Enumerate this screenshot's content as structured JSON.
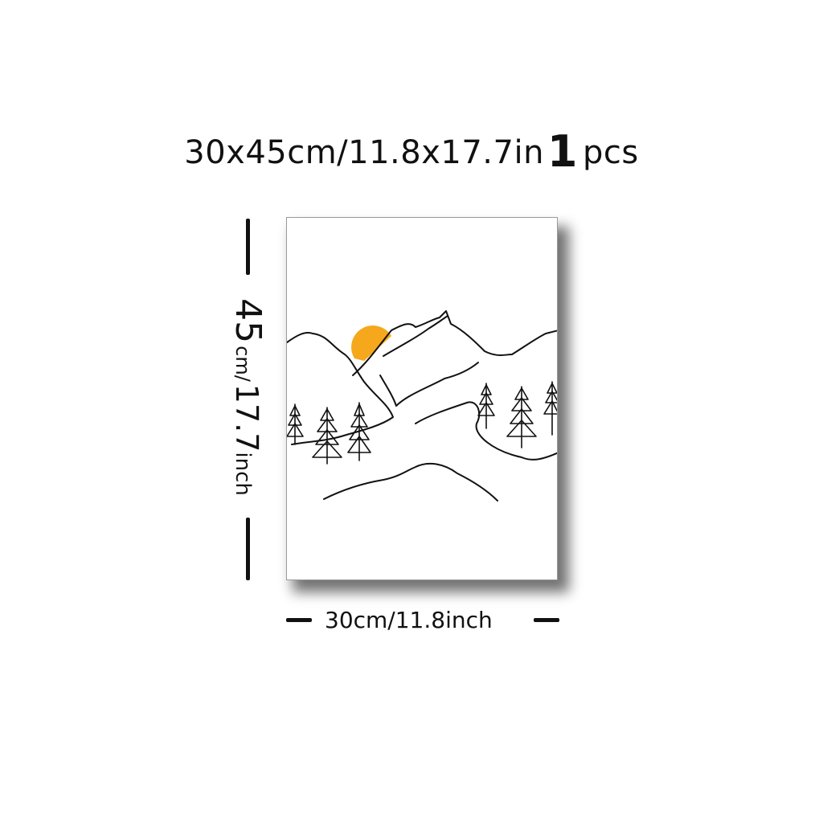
{
  "title": {
    "main": "30x45cm/11.8x17.7in",
    "qty": "1",
    "unit": "pcs"
  },
  "height_label": {
    "number": "45",
    "unit_small": "cm/",
    "value": "17.7",
    "unit_tail": "inch"
  },
  "width_label": "30cm/11.8inch",
  "artwork": {
    "line_color": "#111111",
    "sun_color": "#f5a81c",
    "icons": [
      "sun-icon",
      "mountain-icon",
      "pine-tree-icon"
    ]
  }
}
